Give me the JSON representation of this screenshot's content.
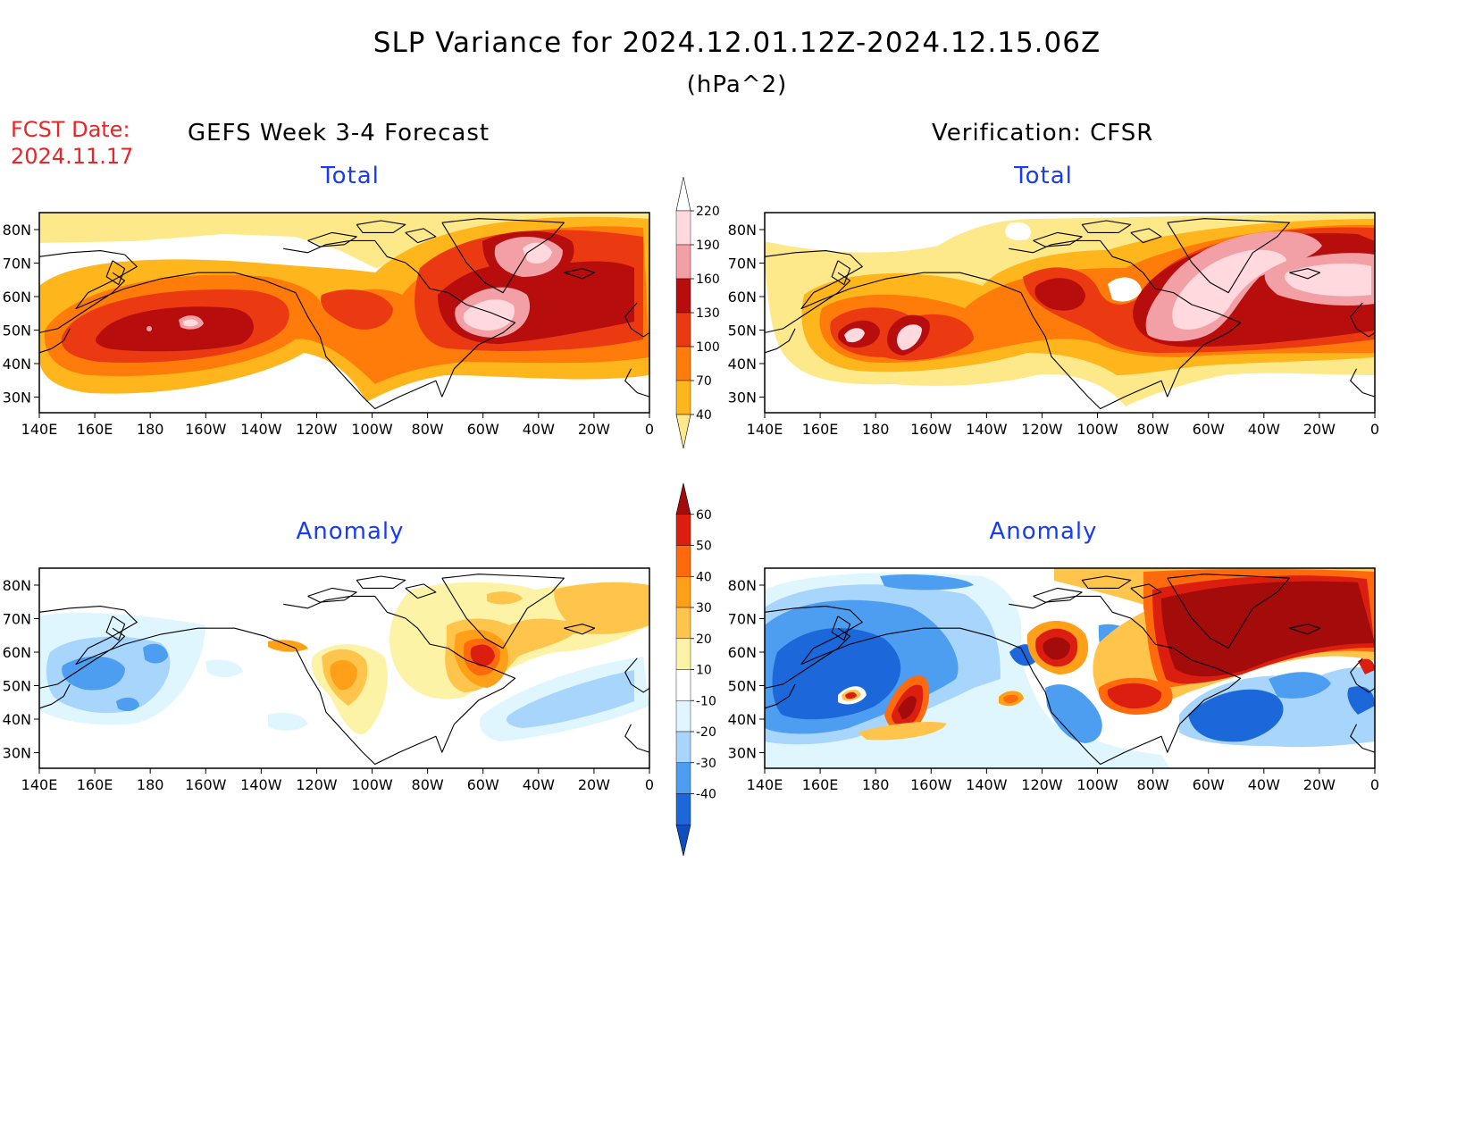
{
  "header": {
    "title": "SLP Variance for 2024.12.01.12Z-2024.12.15.06Z",
    "units": "(hPa^2)",
    "fcst_label": "FCST Date:",
    "fcst_date": "2024.11.17"
  },
  "columns": {
    "left": "GEFS Week 3-4 Forecast",
    "right": "Verification: CFSR"
  },
  "panels": {
    "top_left": "Total",
    "top_right": "Total",
    "bottom_left": "Anomaly",
    "bottom_right": "Anomaly"
  },
  "axes": {
    "lon_ticks": [
      "140E",
      "160E",
      "180",
      "160W",
      "140W",
      "120W",
      "100W",
      "80W",
      "60W",
      "40W",
      "20W",
      "0"
    ],
    "lat_ticks": [
      "80N",
      "70N",
      "60N",
      "50N",
      "40N",
      "30N"
    ]
  },
  "colorbars": {
    "total": {
      "labels": [
        "40",
        "70",
        "100",
        "130",
        "160",
        "190",
        "220"
      ],
      "colors": [
        "#fde98a",
        "#ffb51c",
        "#ff7b0a",
        "#eb3a12",
        "#b70d0d",
        "#f2a0a6",
        "#ffd9de",
        "#ffffff"
      ]
    },
    "anomaly": {
      "labels": [
        "60",
        "50",
        "40",
        "30",
        "20",
        "10",
        "-10",
        "-20",
        "-30",
        "-40"
      ],
      "colors": [
        "#a40b0b",
        "#dc1e10",
        "#ff6a0d",
        "#ffa018",
        "#ffc44b",
        "#fdf3a6",
        "#ffffff",
        "#e0f6ff",
        "#a7d5fb",
        "#4d9ef0",
        "#1c67d9",
        "#0f4ec0"
      ]
    }
  },
  "legend_colors": {
    "title_accent": "#1a3cf0",
    "fcst_accent": "#e8262a"
  }
}
